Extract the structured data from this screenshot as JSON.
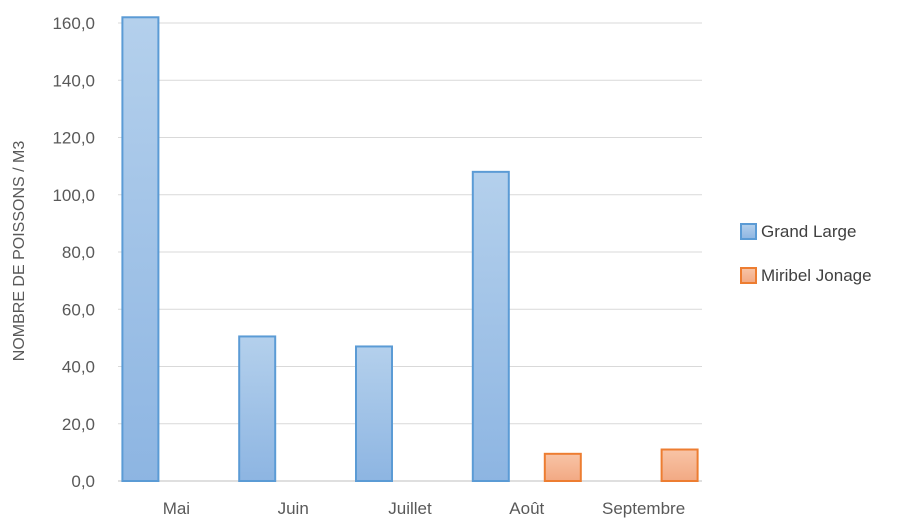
{
  "chart_data": {
    "type": "bar",
    "categories": [
      "Mai",
      "Juin",
      "Juillet",
      "Août",
      "Septembre"
    ],
    "series": [
      {
        "name": "Grand Large",
        "values": [
          162.0,
          50.5,
          47.0,
          108.0,
          null
        ],
        "color": "#9dc3e6"
      },
      {
        "name": "Miribel Jonage",
        "values": [
          null,
          null,
          null,
          9.5,
          11.0
        ],
        "color": "#f4b183"
      }
    ],
    "title": "",
    "xlabel": "",
    "ylabel": "NOMBRE DE POISSONS / M3",
    "ylim": [
      0,
      160
    ],
    "yticks": [
      "0,0",
      "20,0",
      "40,0",
      "60,0",
      "80,0",
      "100,0",
      "120,0",
      "140,0",
      "160,0"
    ],
    "grid": true,
    "legend_position": "right"
  }
}
